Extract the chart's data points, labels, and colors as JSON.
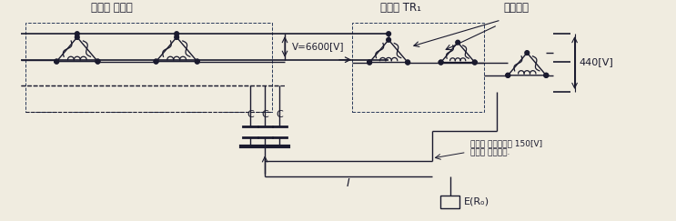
{
  "bg_color": "#f0ece0",
  "lc": "#2a3a5a",
  "dc": "#1a1a2e",
  "title_배전용": "배전용 변압기",
  "title_TR1": "변압기 TR₁",
  "title_혼촉": "혼촉사고",
  "label_V6600": "V=6600[V]",
  "label_440V": "440[V]",
  "label_C": "C",
  "label_I": "I",
  "label_E": "E(Rₒ)",
  "label_억제": "이곳의 전위상승을 150[V]\n이하로 억제한다.",
  "figsize": [
    7.43,
    2.43
  ],
  "dpi": 100
}
